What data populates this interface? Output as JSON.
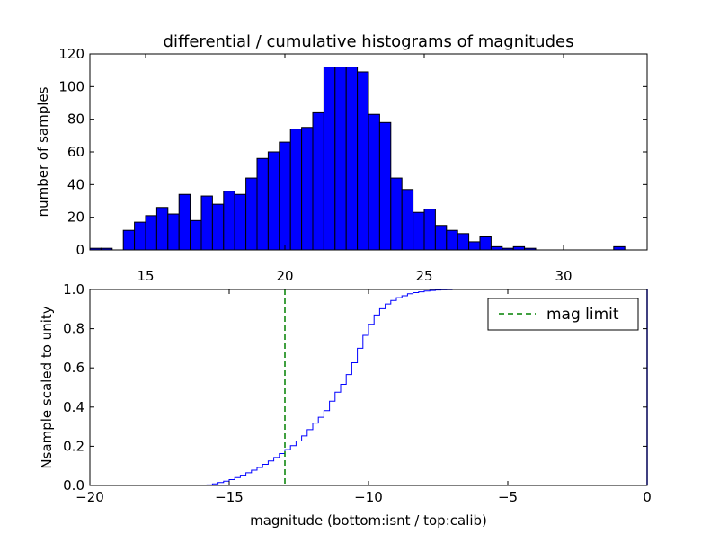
{
  "chart_data": [
    {
      "type": "bar",
      "title": "differential / cumulative histograms of magnitudes",
      "xlabel": "",
      "ylabel": "number of samples",
      "xlim": [
        13,
        33
      ],
      "ylim": [
        0,
        120
      ],
      "xticks": [
        15,
        20,
        25,
        30
      ],
      "xtick_labels": [
        "15",
        "20",
        "25",
        "30"
      ],
      "yticks": [
        0,
        20,
        40,
        60,
        80,
        100,
        120
      ],
      "ytick_labels": [
        "0",
        "20",
        "40",
        "60",
        "80",
        "100",
        "120"
      ],
      "bar_color": "#0000ff",
      "bin_width": 0.4,
      "bins": [
        {
          "left": 13.0,
          "value": 1
        },
        {
          "left": 13.4,
          "value": 1
        },
        {
          "left": 14.2,
          "value": 12
        },
        {
          "left": 14.6,
          "value": 17
        },
        {
          "left": 15.0,
          "value": 21
        },
        {
          "left": 15.4,
          "value": 26
        },
        {
          "left": 15.8,
          "value": 22
        },
        {
          "left": 16.2,
          "value": 34
        },
        {
          "left": 16.6,
          "value": 18
        },
        {
          "left": 17.0,
          "value": 33
        },
        {
          "left": 17.4,
          "value": 28
        },
        {
          "left": 17.8,
          "value": 36
        },
        {
          "left": 18.2,
          "value": 34
        },
        {
          "left": 18.6,
          "value": 44
        },
        {
          "left": 19.0,
          "value": 56
        },
        {
          "left": 19.4,
          "value": 60
        },
        {
          "left": 19.8,
          "value": 66
        },
        {
          "left": 20.2,
          "value": 74
        },
        {
          "left": 20.6,
          "value": 75
        },
        {
          "left": 21.0,
          "value": 84
        },
        {
          "left": 21.4,
          "value": 112
        },
        {
          "left": 21.8,
          "value": 112
        },
        {
          "left": 22.2,
          "value": 112
        },
        {
          "left": 22.6,
          "value": 109
        },
        {
          "left": 23.0,
          "value": 83
        },
        {
          "left": 23.4,
          "value": 78
        },
        {
          "left": 23.8,
          "value": 44
        },
        {
          "left": 24.2,
          "value": 37
        },
        {
          "left": 24.6,
          "value": 23
        },
        {
          "left": 25.0,
          "value": 25
        },
        {
          "left": 25.4,
          "value": 15
        },
        {
          "left": 25.8,
          "value": 12
        },
        {
          "left": 26.2,
          "value": 10
        },
        {
          "left": 26.6,
          "value": 5
        },
        {
          "left": 27.0,
          "value": 8
        },
        {
          "left": 27.4,
          "value": 2
        },
        {
          "left": 27.8,
          "value": 1
        },
        {
          "left": 28.2,
          "value": 2
        },
        {
          "left": 28.6,
          "value": 1
        },
        {
          "left": 31.8,
          "value": 2
        }
      ]
    },
    {
      "type": "line",
      "title": "",
      "xlabel": "magnitude (bottom:isnt / top:calib)",
      "ylabel": "Nsample scaled to unity",
      "xlim": [
        -20,
        0
      ],
      "ylim": [
        0.0,
        1.0
      ],
      "xticks": [
        -20,
        -15,
        -10,
        -5,
        0
      ],
      "xtick_labels": [
        "−20",
        "−15",
        "−10",
        "−5",
        "0"
      ],
      "yticks": [
        0.0,
        0.2,
        0.4,
        0.6,
        0.8,
        1.0
      ],
      "ytick_labels": [
        "0.0",
        "0.2",
        "0.4",
        "0.6",
        "0.8",
        "1.0"
      ],
      "series": [
        {
          "name": "cumulative",
          "color": "#0000ff",
          "style": "step",
          "x": [
            -20.0,
            -16.0,
            -15.8,
            -15.6,
            -15.4,
            -15.2,
            -15.0,
            -14.8,
            -14.6,
            -14.4,
            -14.2,
            -14.0,
            -13.8,
            -13.6,
            -13.4,
            -13.2,
            -13.0,
            -12.8,
            -12.6,
            -12.4,
            -12.2,
            -12.0,
            -11.8,
            -11.6,
            -11.4,
            -11.2,
            -11.0,
            -10.8,
            -10.6,
            -10.4,
            -10.2,
            -10.0,
            -9.8,
            -9.6,
            -9.4,
            -9.2,
            -9.0,
            -8.8,
            -8.6,
            -8.4,
            -8.2,
            -8.0,
            -7.8,
            -7.6,
            -7.4,
            -7.2,
            -7.0,
            -6.8,
            0.0
          ],
          "y": [
            0.0,
            0.0,
            0.003,
            0.008,
            0.015,
            0.022,
            0.03,
            0.04,
            0.052,
            0.065,
            0.078,
            0.092,
            0.108,
            0.125,
            0.143,
            0.163,
            0.183,
            0.203,
            0.227,
            0.253,
            0.285,
            0.318,
            0.348,
            0.382,
            0.43,
            0.476,
            0.516,
            0.566,
            0.626,
            0.7,
            0.766,
            0.822,
            0.87,
            0.902,
            0.926,
            0.944,
            0.958,
            0.968,
            0.978,
            0.984,
            0.988,
            0.992,
            0.995,
            0.997,
            0.998,
            0.999,
            1.0,
            1.0,
            1.0
          ]
        },
        {
          "name": "mag limit",
          "color": "#008000",
          "style": "dashed-vertical",
          "x_value": -13.0
        }
      ],
      "legend": {
        "location": "top-right",
        "entries": [
          {
            "label": "mag limit",
            "color": "#008000",
            "style": "dashed"
          }
        ]
      }
    }
  ]
}
